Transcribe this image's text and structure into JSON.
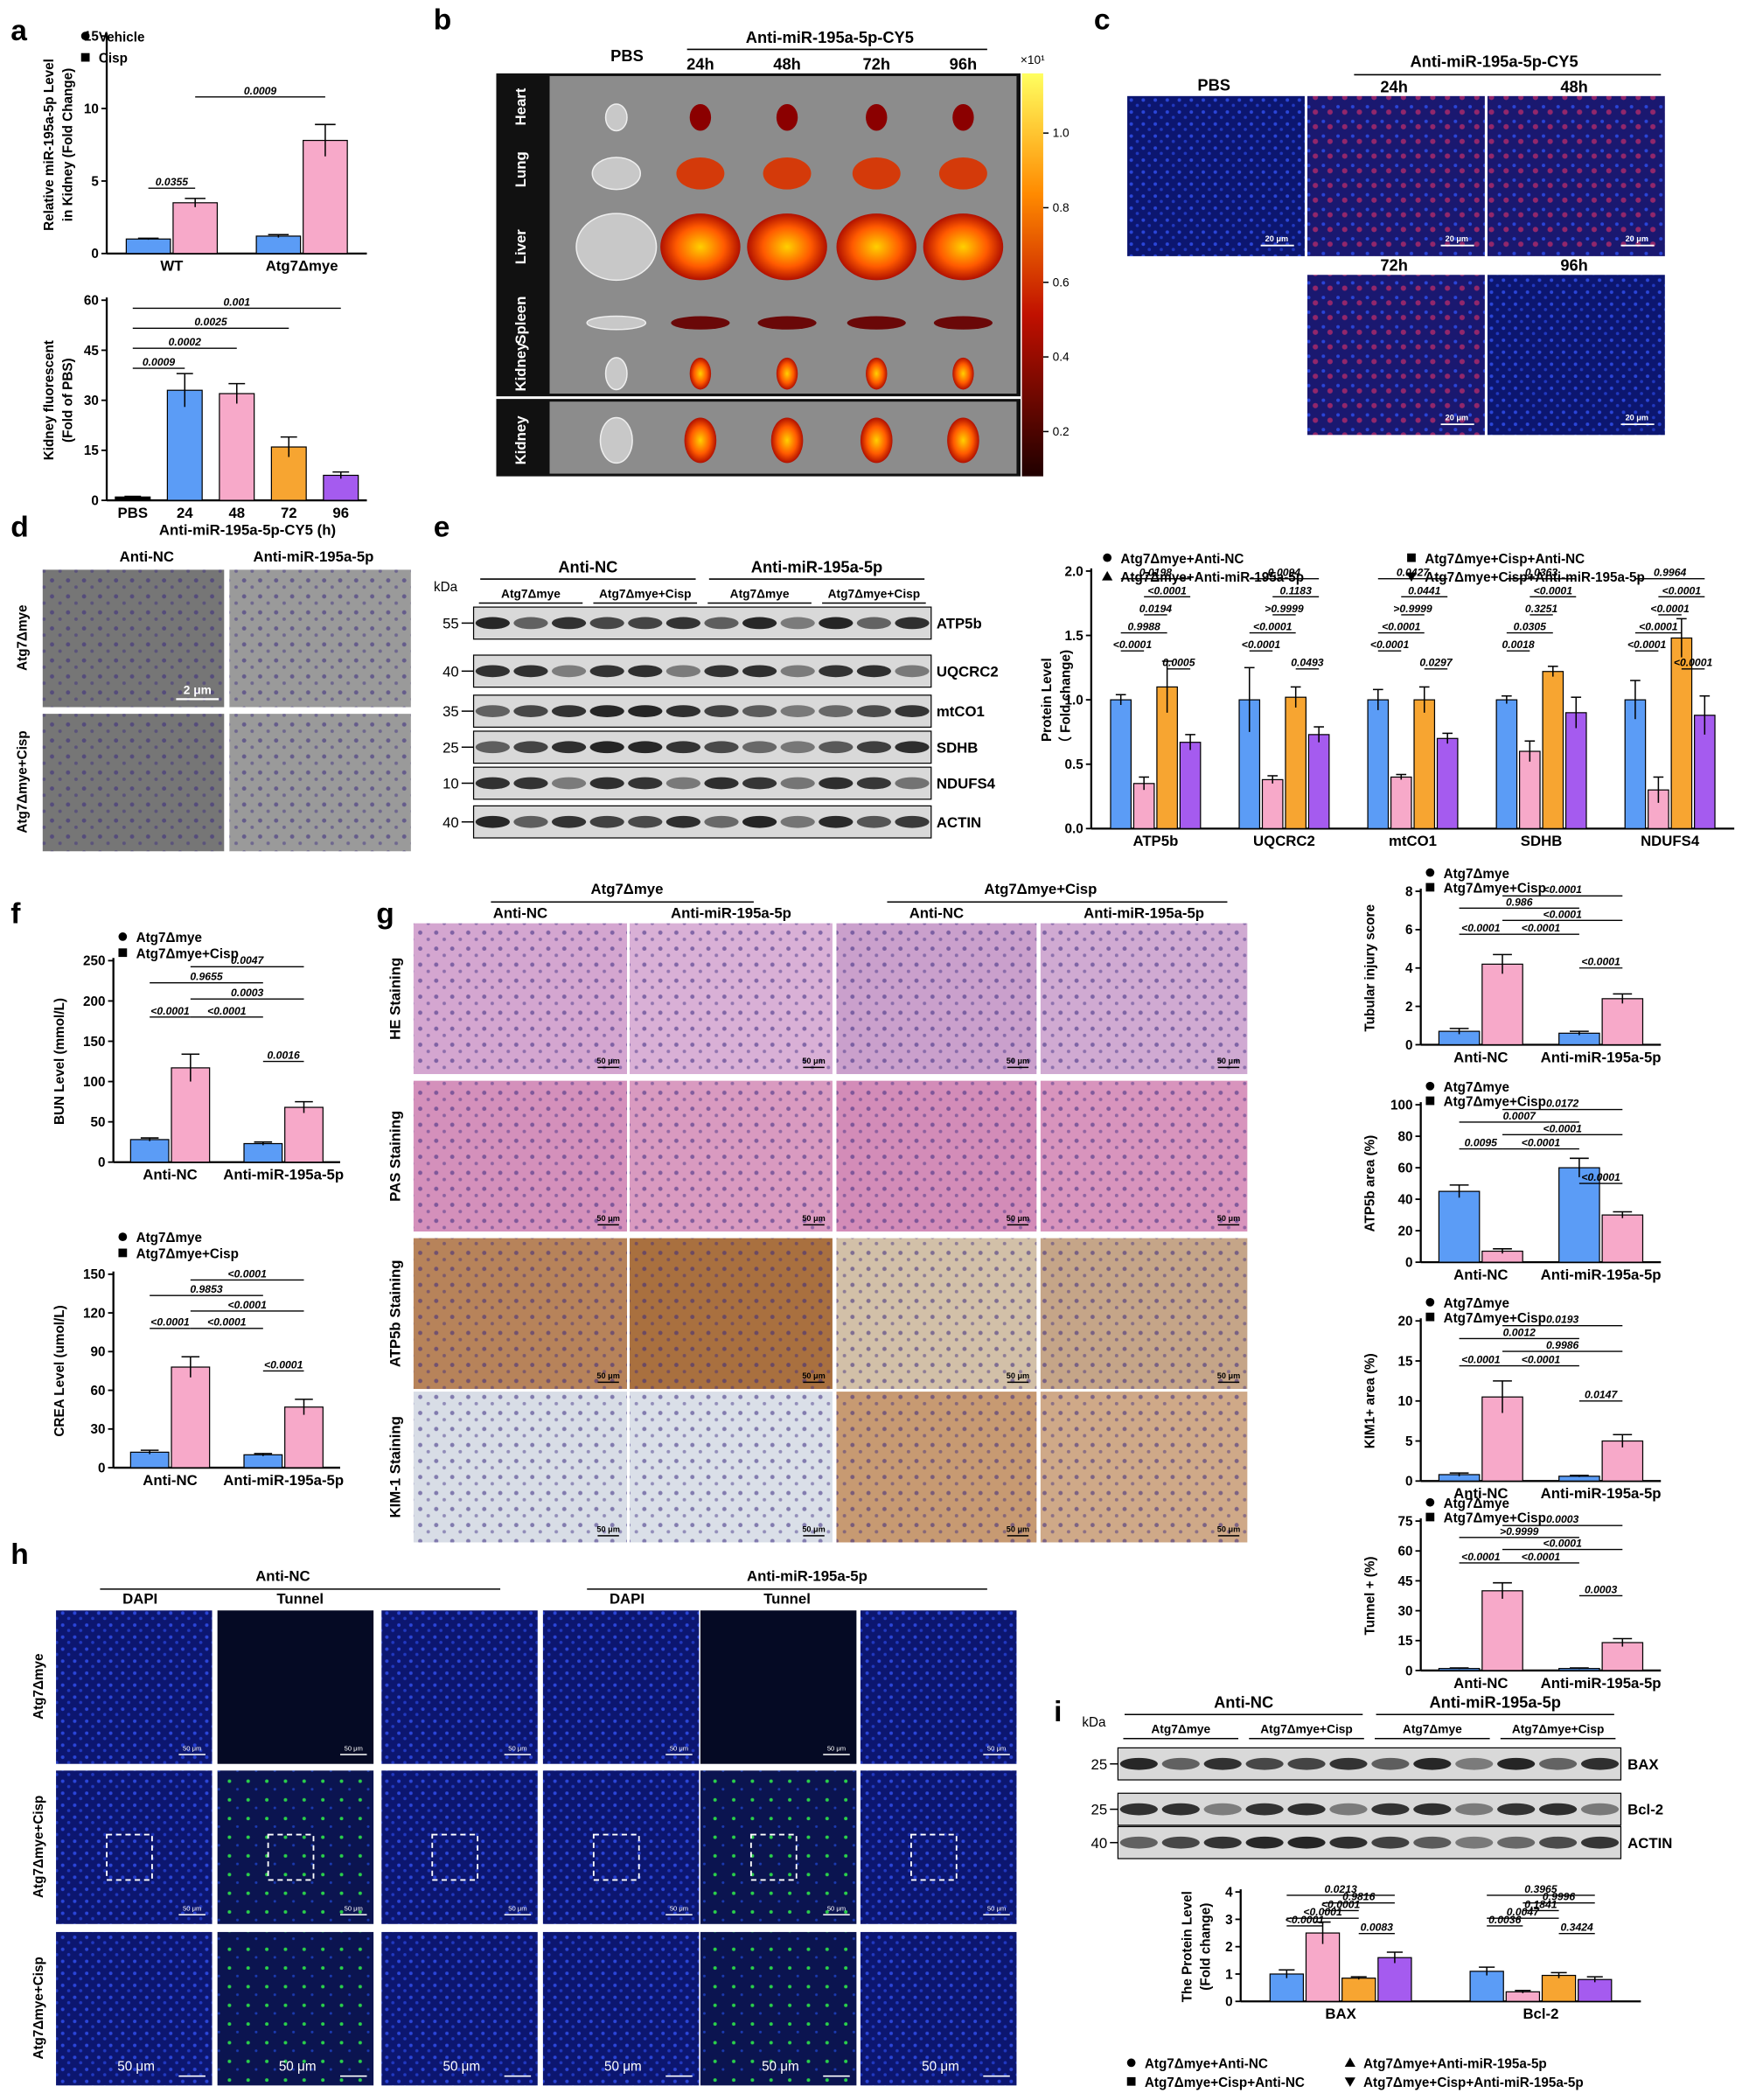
{
  "figure": {
    "labels": [
      "a",
      "b",
      "c",
      "d",
      "e",
      "f",
      "g",
      "h",
      "i"
    ],
    "b": {
      "control": "PBS",
      "treatment": "Anti-miR-195a-5p-CY5",
      "times": [
        "24h",
        "48h",
        "72h",
        "96h"
      ],
      "organs": [
        "Heart",
        "Lung",
        "Liver",
        "Spleen",
        "Kidney",
        "Kidney"
      ],
      "colorbar": {
        "unit": "×10¹",
        "lim": [
          0.08,
          1.16
        ],
        "ticks": [
          {
            "value": 1.0,
            "label": "1.0"
          },
          0.8,
          0.6,
          0.4,
          0.2
        ]
      }
    },
    "c": {
      "control": "PBS",
      "treatment": "Anti-miR-195a-5p-CY5",
      "times": [
        "24h",
        "48h",
        "72h",
        "96h"
      ],
      "scale_bar": "20 μm"
    },
    "d": {
      "columns": [
        "Anti-NC",
        "Anti-miR-195a-5p"
      ],
      "rows": [
        "Atg7Δmye",
        "Atg7Δmye+Cisp"
      ],
      "scale_bar": "2 μm"
    },
    "e_blot": {
      "kda_title": "kDa",
      "groups": [
        "Anti-NC",
        "Anti-miR-195a-5p"
      ],
      "subgroups": [
        "Atg7Δmye",
        "Atg7Δmye+Cisp",
        "Atg7Δmye",
        "Atg7Δmye+Cisp"
      ],
      "rows": [
        {
          "kda": "55",
          "protein": "ATP5b"
        },
        {
          "kda": "40",
          "protein": "UQCRC2"
        },
        {
          "kda": "35",
          "protein": "mtCO1"
        },
        {
          "kda": "25",
          "protein": "SDHB"
        },
        {
          "kda": "10",
          "protein": "NDUFS4"
        },
        {
          "kda": "40",
          "protein": "ACTIN"
        }
      ]
    },
    "g_images": {
      "groups": [
        "Atg7Δmye",
        "Atg7Δmye+Cisp"
      ],
      "columns": [
        "Anti-NC",
        "Anti-miR-195a-5p",
        "Anti-NC",
        "Anti-miR-195a-5p"
      ],
      "rows": [
        "HE Staining",
        "PAS Staining",
        "ATP5b Staining",
        "KIM-1 Staining"
      ],
      "scale_bar": "50 μm"
    },
    "h_images": {
      "groups": [
        "Anti-NC",
        "Anti-miR-195a-5p"
      ],
      "channels": [
        "DAPI",
        "Tunnel",
        "DAPI",
        "Tunnel"
      ],
      "rows": [
        "Atg7Δmye",
        "Atg7Δmye+Cisp",
        "Atg7Δmye+Cisp"
      ],
      "scale_bar": "50 μm"
    },
    "i_blot": {
      "kda_title": "kDa",
      "groups": [
        "Anti-NC",
        "Anti-miR-195a-5p"
      ],
      "subgroups": [
        "Atg7Δmye",
        "Atg7Δmye+Cisp",
        "Atg7Δmye",
        "Atg7Δmye+Cisp"
      ],
      "rows": [
        {
          "kda": "25",
          "protein": "BAX"
        },
        {
          "kda": "25",
          "protein": "Bcl-2"
        },
        {
          "kda": "40",
          "protein": "ACTIN"
        }
      ]
    }
  },
  "chart_data": [
    {
      "type": "bar",
      "y_label": [
        "Relative miR-195a-5p Level",
        "in Kidney (Fold Change)"
      ],
      "categories": [
        "WT",
        "Atg7Δmye"
      ],
      "series": [
        {
          "name": "Vehicle",
          "color": "#5b9cf6",
          "values": [
            1.0,
            1.2
          ],
          "errors": [
            0.05,
            0.1
          ]
        },
        {
          "name": "Cisp",
          "color": "#f7a9c9",
          "values": [
            3.5,
            7.8
          ],
          "errors": [
            0.3,
            1.1
          ]
        }
      ],
      "ylim": [
        0,
        15
      ],
      "yticks": [
        0,
        5,
        10,
        15
      ],
      "annotations": [
        "0.0355",
        "0.0009"
      ]
    },
    {
      "type": "bar",
      "y_label": [
        "Kidney fluorescent",
        "(Fold of PBS)"
      ],
      "x_label": "Anti-miR-195a-5p-CY5 (h)",
      "categories": [
        "PBS",
        "24",
        "48",
        "72",
        "96"
      ],
      "values": [
        1,
        33,
        32,
        16,
        7.5
      ],
      "errors": [
        0.2,
        5,
        3,
        3,
        1
      ],
      "colors": [
        "#000000",
        "#5b9cf6",
        "#f7a9c9",
        "#f7a531",
        "#a55bef"
      ],
      "ylim": [
        0,
        60
      ],
      "yticks": [
        0,
        15,
        30,
        45,
        60
      ],
      "annotations": [
        "0.0009",
        "0.0002",
        "0.0025",
        "0.001"
      ]
    },
    {
      "type": "bar",
      "y_label": [
        "Protein Level",
        "（ Fold change)"
      ],
      "categories": [
        "ATP5b",
        "UQCRC2",
        "mtCO1",
        "SDHB",
        "NDUFS4"
      ],
      "series": [
        {
          "name": "Atg7Δmye+Anti-NC",
          "color": "#5b9cf6",
          "values": [
            1,
            1,
            1,
            1,
            1
          ],
          "errors": [
            0.04,
            0.25,
            0.08,
            0.03,
            0.15
          ]
        },
        {
          "name": "Atg7Δmye+Cisp+Anti-NC",
          "color": "#f7a9c9",
          "values": [
            0.35,
            0.38,
            0.4,
            0.6,
            0.3
          ],
          "errors": [
            0.05,
            0.03,
            0.02,
            0.08,
            0.1
          ]
        },
        {
          "name": "Atg7Δmye+Anti-miR-195a-5p",
          "color": "#f7a531",
          "values": [
            1.1,
            1.02,
            1.0,
            1.22,
            1.48
          ],
          "errors": [
            0.2,
            0.08,
            0.1,
            0.04,
            0.15
          ]
        },
        {
          "name": "Atg7Δmye+Cisp+Anti-miR-195a-5p",
          "color": "#a55bef",
          "values": [
            0.67,
            0.73,
            0.7,
            0.9,
            0.88
          ],
          "errors": [
            0.06,
            0.06,
            0.04,
            0.12,
            0.15
          ]
        }
      ],
      "ylim": [
        0,
        2
      ],
      "yticks": [
        {
          "value": 0,
          "label": "0.0"
        },
        0.5,
        {
          "value": 1,
          "label": "1.0"
        },
        1.5,
        {
          "value": 2,
          "label": "2.0"
        }
      ],
      "annotations": [
        [
          "0.0198",
          "<0.0001",
          "0.0194",
          "0.9988",
          "<0.0001",
          "0.0005"
        ],
        [
          "0.0094",
          "0.1183",
          ">0.9999",
          "<0.0001",
          "<0.0001",
          "0.0493"
        ],
        [
          "0.0427",
          "0.0441",
          ">0.9999",
          "<0.0001",
          "<0.0001",
          "0.0297"
        ],
        [
          "0.0363",
          "<0.0001",
          "0.3251",
          "0.0305",
          "0.0018"
        ],
        [
          "0.9964",
          "<0.0001",
          "<0.0001",
          "<0.0001",
          "<0.0001",
          "<0.0001"
        ]
      ]
    },
    {
      "type": "bar",
      "y_label": [
        "BUN Level (mmol/L)"
      ],
      "categories": [
        "Anti-NC",
        "Anti-miR-195a-5p"
      ],
      "series": [
        {
          "name": "Atg7Δmye",
          "color": "#5b9cf6",
          "values": [
            28,
            23
          ],
          "errors": [
            2,
            2
          ]
        },
        {
          "name": "Atg7Δmye+Cisp",
          "color": "#f7a9c9",
          "values": [
            117,
            68
          ],
          "errors": [
            17,
            7
          ]
        }
      ],
      "ylim": [
        0,
        250
      ],
      "yticks": [
        0,
        50,
        100,
        150,
        200,
        250
      ],
      "annotations": [
        "0.0047",
        "0.9655",
        "0.0003",
        "<0.0001",
        "<0.0001",
        "0.0016"
      ]
    },
    {
      "type": "bar",
      "y_label": [
        "CREA Level (umol/L)"
      ],
      "categories": [
        "Anti-NC",
        "Anti-miR-195a-5p"
      ],
      "series": [
        {
          "name": "Atg7Δmye",
          "color": "#5b9cf6",
          "values": [
            12,
            10
          ],
          "errors": [
            1.5,
            1
          ]
        },
        {
          "name": "Atg7Δmye+Cisp",
          "color": "#f7a9c9",
          "values": [
            78,
            47
          ],
          "errors": [
            8,
            6
          ]
        }
      ],
      "ylim": [
        0,
        150
      ],
      "yticks": [
        0,
        30,
        60,
        90,
        120,
        150
      ],
      "annotations": [
        "<0.0001",
        "0.9853",
        "<0.0001",
        "<0.0001",
        "<0.0001",
        "<0.0001"
      ]
    },
    {
      "type": "bar",
      "y_label": [
        "Tubular injury score"
      ],
      "categories": [
        "Anti-NC",
        "Anti-miR-195a-5p"
      ],
      "series": [
        {
          "name": "Atg7Δmye",
          "color": "#5b9cf6",
          "values": [
            0.7,
            0.6
          ],
          "errors": [
            0.15,
            0.1
          ]
        },
        {
          "name": "Atg7Δmye+Cisp",
          "color": "#f7a9c9",
          "values": [
            4.2,
            2.4
          ],
          "errors": [
            0.5,
            0.25
          ]
        }
      ],
      "ylim": [
        0,
        8
      ],
      "yticks": [
        0,
        2,
        4,
        6,
        8
      ],
      "annotations": [
        "<0.0001",
        "0.986",
        "<0.0001",
        "<0.0001",
        "<0.0001",
        "<0.0001"
      ]
    },
    {
      "type": "bar",
      "y_label": [
        "ATP5b area (%)"
      ],
      "categories": [
        "Anti-NC",
        "Anti-miR-195a-5p"
      ],
      "series": [
        {
          "name": "Atg7Δmye",
          "color": "#5b9cf6",
          "values": [
            45,
            60
          ],
          "errors": [
            4,
            6
          ]
        },
        {
          "name": "Atg7Δmye+Cisp",
          "color": "#f7a9c9",
          "values": [
            7,
            30
          ],
          "errors": [
            1.5,
            2
          ]
        }
      ],
      "ylim": [
        0,
        100
      ],
      "yticks": [
        0,
        20,
        40,
        60,
        80,
        100
      ],
      "annotations": [
        "0.0172",
        "0.0007",
        "<0.0001",
        "0.0095",
        "<0.0001",
        "<0.0001"
      ]
    },
    {
      "type": "bar",
      "y_label": [
        "KIM1+ area (%)"
      ],
      "categories": [
        "Anti-NC",
        "Anti-miR-195a-5p"
      ],
      "series": [
        {
          "name": "Atg7Δmye",
          "color": "#5b9cf6",
          "values": [
            0.8,
            0.6
          ],
          "errors": [
            0.2,
            0.1
          ]
        },
        {
          "name": "Atg7Δmye+Cisp",
          "color": "#f7a9c9",
          "values": [
            10.5,
            5
          ],
          "errors": [
            2,
            0.8
          ]
        }
      ],
      "ylim": [
        0,
        20
      ],
      "yticks": [
        0,
        5,
        10,
        15,
        20
      ],
      "annotations": [
        "0.0193",
        "0.0012",
        "0.9986",
        "<0.0001",
        "<0.0001",
        "0.0147"
      ]
    },
    {
      "type": "bar",
      "y_label": [
        "Tunnel + (%)"
      ],
      "categories": [
        "Anti-NC",
        "Anti-miR-195a-5p"
      ],
      "series": [
        {
          "name": "Atg7Δmye",
          "color": "#5b9cf6",
          "values": [
            1,
            1
          ],
          "errors": [
            0.3,
            0.3
          ]
        },
        {
          "name": "Atg7Δmye+Cisp",
          "color": "#f7a9c9",
          "values": [
            40,
            14
          ],
          "errors": [
            4,
            2
          ]
        }
      ],
      "ylim": [
        0,
        75
      ],
      "yticks": [
        0,
        15,
        30,
        45,
        60,
        75
      ],
      "annotations": [
        "0.0003",
        ">0.9999",
        "<0.0001",
        "<0.0001",
        "<0.0001",
        "0.0003"
      ]
    },
    {
      "type": "bar",
      "y_label": [
        "The Protein Level",
        "(Fold change)"
      ],
      "categories": [
        "BAX",
        "Bcl-2"
      ],
      "series": [
        {
          "name": "Atg7Δmye+Anti-NC",
          "color": "#5b9cf6",
          "values": [
            1.0,
            1.1
          ],
          "errors": [
            0.15,
            0.15
          ]
        },
        {
          "name": "Atg7Δmye+Cisp+Anti-NC",
          "color": "#f7a9c9",
          "values": [
            2.5,
            0.35
          ],
          "errors": [
            0.4,
            0.05
          ]
        },
        {
          "name": "Atg7Δmye+Anti-miR-195a-5p",
          "color": "#f7a531",
          "values": [
            0.85,
            0.95
          ],
          "errors": [
            0.05,
            0.1
          ]
        },
        {
          "name": "Atg7Δmye+Cisp+Anti-miR-195a-5p",
          "color": "#a55bef",
          "values": [
            1.6,
            0.8
          ],
          "errors": [
            0.2,
            0.1
          ]
        }
      ],
      "ylim": [
        0,
        4
      ],
      "yticks": [
        0,
        1,
        2,
        3,
        4
      ],
      "annotations": [
        [
          "0.0213",
          "0.9816",
          "<0.0001",
          "<0.0001",
          "<0.0001",
          "0.0083"
        ],
        [
          "0.3965",
          "0.9996",
          "0.1841",
          "0.0047",
          "0.0036",
          "0.3424"
        ]
      ]
    }
  ]
}
